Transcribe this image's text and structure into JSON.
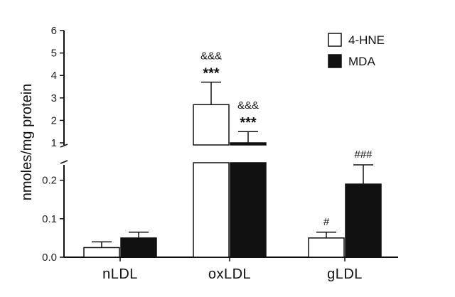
{
  "chart_data": {
    "type": "bar",
    "ylabel": "nmoles/mg protein",
    "categories": [
      "nLDL",
      "oxLDL",
      "gLDL"
    ],
    "legend_position": "top-right",
    "y_axis_break": true,
    "lower_segment": {
      "ylim": [
        0.0,
        0.24
      ],
      "ticks": [
        0.0,
        0.1,
        0.2
      ],
      "tick_labels": [
        "0.0",
        "0.1",
        "0.2"
      ]
    },
    "upper_segment": {
      "ylim": [
        1,
        6
      ],
      "ticks": [
        1,
        2,
        3,
        4,
        5,
        6
      ],
      "tick_labels": [
        "1",
        "2",
        "3",
        "4",
        "5",
        "6"
      ]
    },
    "series": [
      {
        "name": "4-HNE",
        "color": "#ffffff",
        "values": [
          0.025,
          2.7,
          0.05
        ],
        "errors": [
          0.015,
          1.0,
          0.015
        ],
        "annotations": [
          [],
          [
            "&&&",
            "***"
          ],
          [
            "#"
          ]
        ]
      },
      {
        "name": "MDA",
        "color": "#111111",
        "values": [
          0.05,
          1.0,
          0.19
        ],
        "errors": [
          0.015,
          0.5,
          0.05
        ],
        "annotations": [
          [],
          [
            "&&&",
            "***"
          ],
          [
            "###"
          ]
        ]
      }
    ]
  }
}
